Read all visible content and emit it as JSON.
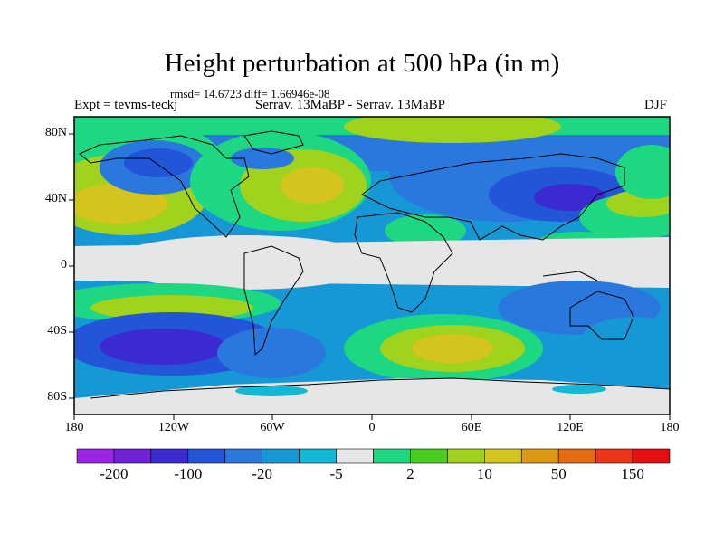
{
  "title": "Height perturbation at 500 hPa (in m)",
  "stats": "rmsd= 14.6723 diff= 1.66946e-08",
  "left_label": "Expt = tevms-teckj",
  "center_label": "Serrav.   13MaBP - Serrav.   13MaBP",
  "right_label": "DJF",
  "y_ticks": [
    "80N",
    "40N",
    "0",
    "40S",
    "80S"
  ],
  "x_ticks": [
    "180",
    "120W",
    "60W",
    "0",
    "60E",
    "120E",
    "180"
  ],
  "colorbar": {
    "colors": [
      "#9c24e6",
      "#7020d6",
      "#3a2ad0",
      "#2255d8",
      "#2a78de",
      "#1798d6",
      "#12b8d6",
      "#e6e6e6",
      "#1ed782",
      "#48cc1e",
      "#a0d21e",
      "#d6c41e",
      "#dc9a14",
      "#e66a10",
      "#ee3418",
      "#e60e0e"
    ],
    "labels": [
      "-200",
      "-100",
      "-20",
      "-5",
      "2",
      "10",
      "50",
      "150"
    ]
  }
}
